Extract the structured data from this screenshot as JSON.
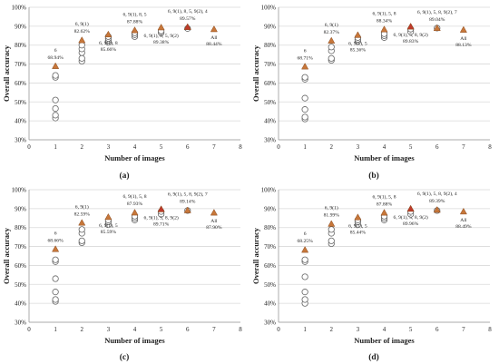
{
  "chart_data": [
    {
      "type": "scatter",
      "panel_label": "(a)",
      "xlabel": "Number of images",
      "ylabel": "Overall accuracy",
      "xlim": [
        0,
        8
      ],
      "ylim": [
        30,
        100
      ],
      "xticks": [
        0,
        1,
        2,
        3,
        4,
        5,
        6,
        7,
        8
      ],
      "yticks": [
        "30%",
        "40%",
        "50%",
        "60%",
        "70%",
        "80%",
        "90%",
        "100%"
      ],
      "grid": true,
      "series": [
        {
          "marker": "circle",
          "points": [
            [
              1,
              41.5
            ],
            [
              1,
              43
            ],
            [
              1,
              46.5
            ],
            [
              1,
              51
            ],
            [
              1,
              63
            ],
            [
              1,
              64
            ],
            [
              2,
              71.5
            ],
            [
              2,
              73
            ],
            [
              2,
              76
            ],
            [
              2,
              78
            ],
            [
              2,
              80
            ],
            [
              3,
              81.5
            ],
            [
              3,
              82.5
            ],
            [
              3,
              83.5
            ],
            [
              3,
              84.5
            ],
            [
              4,
              84.5
            ],
            [
              4,
              85.5
            ],
            [
              4,
              86.5
            ],
            [
              5,
              86.5
            ],
            [
              5,
              87.5
            ],
            [
              6,
              88.8
            ]
          ]
        },
        {
          "marker": "triangle",
          "color": "#c7773a",
          "points": [
            [
              1,
              68.94
            ],
            [
              2,
              82.62
            ],
            [
              3,
              85.66
            ],
            [
              4,
              87.88
            ],
            [
              5,
              89.38
            ],
            [
              6,
              89.57
            ],
            [
              7,
              88.44
            ]
          ]
        },
        {
          "marker": "triangle",
          "color": "#c0392b",
          "points": [
            [
              6,
              89.57
            ]
          ]
        }
      ],
      "annotations": [
        {
          "x": 1,
          "y": 68.94,
          "name": "6",
          "value": "68.94%",
          "color": "#222",
          "pos": "above"
        },
        {
          "x": 2,
          "y": 82.62,
          "name": "6, 9(1)",
          "value": "82.62%",
          "color": "#222",
          "pos": "above"
        },
        {
          "x": 3,
          "y": 85.66,
          "name": "6, 9(1), 8",
          "value": "85.66%",
          "color": "#222",
          "pos": "below"
        },
        {
          "x": 4,
          "y": 87.88,
          "name": "6, 9(1), 8, 5",
          "value": "87.88%",
          "color": "#222",
          "pos": "above"
        },
        {
          "x": 5,
          "y": 89.38,
          "name": "6, 9(1), 8, 5, 9(2)",
          "value": "89.38%",
          "color": "#222",
          "pos": "below"
        },
        {
          "x": 6,
          "y": 89.57,
          "name": "6, 9(1), 8, 5, 9(2), 4",
          "value": "89.57%",
          "color": "#c0392b",
          "pos": "above"
        },
        {
          "x": 7,
          "y": 88.44,
          "name": "All",
          "value": "88.44%",
          "color": "#222",
          "pos": "below"
        }
      ]
    },
    {
      "type": "scatter",
      "panel_label": "(b)",
      "xlabel": "Number of images",
      "ylabel": "Overall accuracy",
      "xlim": [
        0,
        8
      ],
      "ylim": [
        30,
        100
      ],
      "xticks": [
        0,
        1,
        2,
        3,
        4,
        5,
        6,
        7,
        8
      ],
      "yticks": [
        "30%",
        "40%",
        "50%",
        "60%",
        "70%",
        "80%",
        "90%",
        "100%"
      ],
      "grid": true,
      "series": [
        {
          "marker": "circle",
          "points": [
            [
              1,
              41
            ],
            [
              1,
              42
            ],
            [
              1,
              46
            ],
            [
              1,
              52
            ],
            [
              1,
              62
            ],
            [
              1,
              63
            ],
            [
              2,
              72
            ],
            [
              2,
              73
            ],
            [
              2,
              77
            ],
            [
              2,
              79
            ],
            [
              3,
              82
            ],
            [
              3,
              83
            ],
            [
              3,
              84
            ],
            [
              4,
              84
            ],
            [
              4,
              85
            ],
            [
              4,
              86
            ],
            [
              5,
              87
            ],
            [
              5,
              88.5
            ],
            [
              6,
              89
            ]
          ]
        },
        {
          "marker": "triangle",
          "color": "#c7773a",
          "points": [
            [
              1,
              68.71
            ],
            [
              2,
              82.37
            ],
            [
              3,
              85.36
            ],
            [
              4,
              88.34
            ],
            [
              5,
              89.83
            ],
            [
              6,
              89.04
            ],
            [
              7,
              88.13
            ]
          ]
        },
        {
          "marker": "triangle",
          "color": "#c0392b",
          "points": [
            [
              5,
              89.83
            ]
          ]
        }
      ],
      "annotations": [
        {
          "x": 1,
          "y": 68.71,
          "name": "6",
          "value": "68.71%",
          "color": "#222",
          "pos": "above"
        },
        {
          "x": 2,
          "y": 82.37,
          "name": "6, 9(1)",
          "value": "82.37%",
          "color": "#222",
          "pos": "above"
        },
        {
          "x": 3,
          "y": 85.36,
          "name": "6, 9(1), 5",
          "value": "85.36%",
          "color": "#222",
          "pos": "below"
        },
        {
          "x": 4,
          "y": 88.34,
          "name": "6, 9(1), 5, 8",
          "value": "88.34%",
          "color": "#222",
          "pos": "above"
        },
        {
          "x": 5,
          "y": 89.83,
          "name": "6, 9(1), 5, 8, 9(2)",
          "value": "89.83%",
          "color": "#c0392b",
          "pos": "below"
        },
        {
          "x": 6,
          "y": 89.04,
          "name": "6, 9(1), 5, 8, 9(2), 7",
          "value": "89.04%",
          "color": "#222",
          "pos": "above"
        },
        {
          "x": 7,
          "y": 88.13,
          "name": "All",
          "value": "88.13%",
          "color": "#222",
          "pos": "below"
        }
      ]
    },
    {
      "type": "scatter",
      "panel_label": "(c)",
      "xlabel": "Number of images",
      "ylabel": "Overall accuracy",
      "xlim": [
        0,
        8
      ],
      "ylim": [
        30,
        100
      ],
      "xticks": [
        0,
        1,
        2,
        3,
        4,
        5,
        6,
        7,
        8
      ],
      "yticks": [
        "30%",
        "40%",
        "50%",
        "60%",
        "70%",
        "80%",
        "90%",
        "100%"
      ],
      "grid": true,
      "series": [
        {
          "marker": "circle",
          "points": [
            [
              1,
              41
            ],
            [
              1,
              42
            ],
            [
              1,
              46
            ],
            [
              1,
              53
            ],
            [
              1,
              62
            ],
            [
              1,
              63
            ],
            [
              2,
              72
            ],
            [
              2,
              73
            ],
            [
              2,
              77
            ],
            [
              2,
              79
            ],
            [
              3,
              81.5
            ],
            [
              3,
              83
            ],
            [
              3,
              84
            ],
            [
              4,
              84
            ],
            [
              4,
              85
            ],
            [
              4,
              86
            ],
            [
              5,
              87
            ],
            [
              5,
              88.5
            ],
            [
              6,
              89
            ]
          ]
        },
        {
          "marker": "triangle",
          "color": "#c7773a",
          "points": [
            [
              1,
              68.66
            ],
            [
              2,
              82.59
            ],
            [
              3,
              85.59
            ],
            [
              4,
              87.93
            ],
            [
              5,
              89.71
            ],
            [
              6,
              89.14
            ],
            [
              7,
              87.9
            ]
          ]
        },
        {
          "marker": "triangle",
          "color": "#c0392b",
          "points": [
            [
              5,
              89.71
            ]
          ]
        }
      ],
      "annotations": [
        {
          "x": 1,
          "y": 68.66,
          "name": "6",
          "value": "68.66%",
          "color": "#222",
          "pos": "above"
        },
        {
          "x": 2,
          "y": 82.59,
          "name": "6, 9(1)",
          "value": "82.59%",
          "color": "#222",
          "pos": "above"
        },
        {
          "x": 3,
          "y": 85.59,
          "name": "6, 9(1), 5",
          "value": "85.59%",
          "color": "#222",
          "pos": "below"
        },
        {
          "x": 4,
          "y": 87.93,
          "name": "6, 9(1), 5, 8",
          "value": "87.93%",
          "color": "#222",
          "pos": "above"
        },
        {
          "x": 5,
          "y": 89.71,
          "name": "6, 9(1), 5, 8, 9(2)",
          "value": "89.71%",
          "color": "#c0392b",
          "pos": "below"
        },
        {
          "x": 6,
          "y": 89.14,
          "name": "6, 9(1), 5, 8, 9(2), 7",
          "value": "89.14%",
          "color": "#222",
          "pos": "above"
        },
        {
          "x": 7,
          "y": 87.9,
          "name": "All",
          "value": "87.90%",
          "color": "#222",
          "pos": "below"
        }
      ]
    },
    {
      "type": "scatter",
      "panel_label": "(d)",
      "xlabel": "Number of images",
      "ylabel": "Overall accuracy",
      "xlim": [
        0,
        8
      ],
      "ylim": [
        30,
        100
      ],
      "xticks": [
        0,
        1,
        2,
        3,
        4,
        5,
        6,
        7,
        8
      ],
      "yticks": [
        "30%",
        "40%",
        "50%",
        "60%",
        "70%",
        "80%",
        "90%",
        "100%"
      ],
      "grid": true,
      "series": [
        {
          "marker": "circle",
          "points": [
            [
              1,
              40
            ],
            [
              1,
              42
            ],
            [
              1,
              46
            ],
            [
              1,
              54
            ],
            [
              1,
              62
            ],
            [
              1,
              63
            ],
            [
              2,
              71.5
            ],
            [
              2,
              73
            ],
            [
              2,
              77
            ],
            [
              2,
              79
            ],
            [
              3,
              81.5
            ],
            [
              3,
              83
            ],
            [
              3,
              84
            ],
            [
              4,
              84
            ],
            [
              4,
              85
            ],
            [
              4,
              86
            ],
            [
              5,
              87
            ],
            [
              5,
              88.5
            ],
            [
              6,
              89
            ]
          ]
        },
        {
          "marker": "triangle",
          "color": "#c7773a",
          "points": [
            [
              1,
              68.25
            ],
            [
              2,
              81.99
            ],
            [
              3,
              85.44
            ],
            [
              4,
              87.88
            ],
            [
              5,
              89.96
            ],
            [
              6,
              89.39
            ],
            [
              7,
              88.49
            ]
          ]
        },
        {
          "marker": "triangle",
          "color": "#c0392b",
          "points": [
            [
              5,
              89.96
            ]
          ]
        }
      ],
      "annotations": [
        {
          "x": 1,
          "y": 68.25,
          "name": "6",
          "value": "68.25%",
          "color": "#222",
          "pos": "above"
        },
        {
          "x": 2,
          "y": 81.99,
          "name": "6, 9(1)",
          "value": "81.99%",
          "color": "#222",
          "pos": "above"
        },
        {
          "x": 3,
          "y": 85.44,
          "name": "6, 9(1), 5",
          "value": "85.44%",
          "color": "#222",
          "pos": "below"
        },
        {
          "x": 4,
          "y": 87.88,
          "name": "6, 9(1), 5, 8",
          "value": "87.88%",
          "color": "#222",
          "pos": "above"
        },
        {
          "x": 5,
          "y": 89.96,
          "name": "6, 9(1), 5, 8, 9(2)",
          "value": "89.96%",
          "color": "#c0392b",
          "pos": "below"
        },
        {
          "x": 6,
          "y": 89.39,
          "name": "6, 9(1), 5, 8, 9(2), 4",
          "value": "89.39%",
          "color": "#222",
          "pos": "above"
        },
        {
          "x": 7,
          "y": 88.49,
          "name": "All",
          "value": "88.49%",
          "color": "#222",
          "pos": "below"
        }
      ]
    }
  ]
}
